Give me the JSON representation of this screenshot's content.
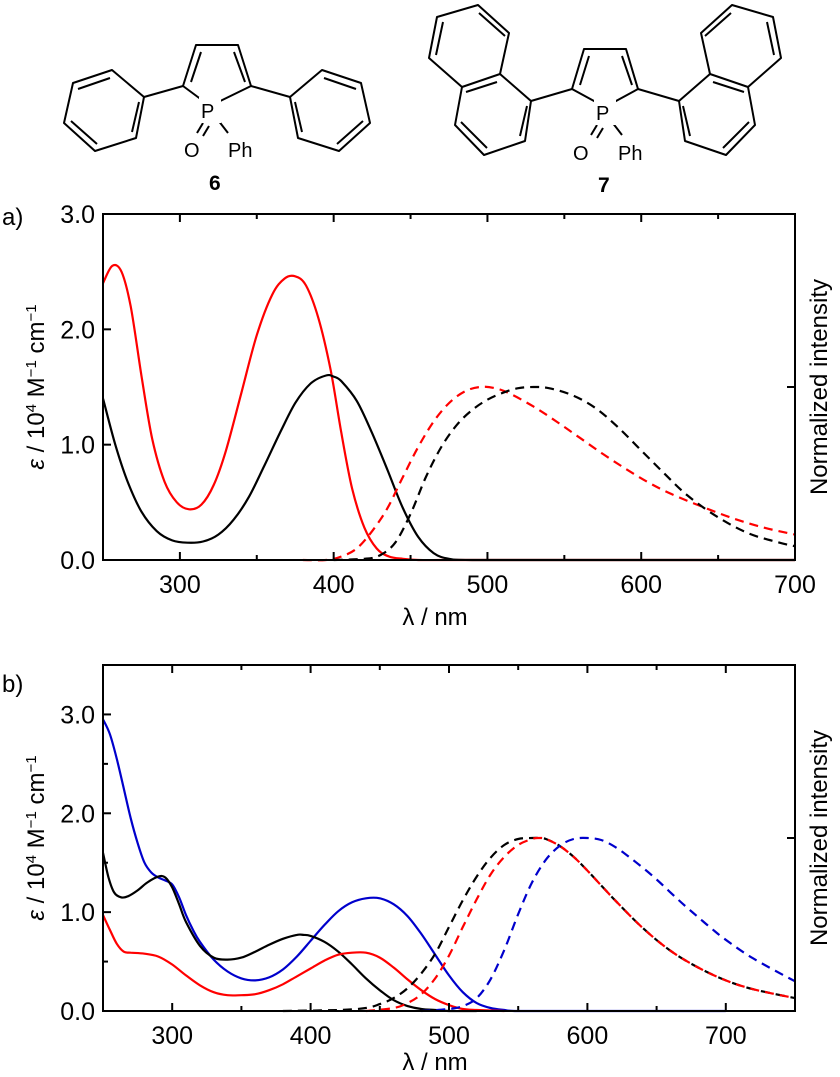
{
  "structures": [
    {
      "id": "6",
      "label": "6",
      "substituents": "2,5-diphenyl",
      "p_oxide_label": "O",
      "p_label": "P",
      "p_substituent": "Ph"
    },
    {
      "id": "7",
      "label": "7",
      "substituents": "2,5-di(1-naphthyl)",
      "p_oxide_label": "O",
      "p_label": "P",
      "p_substituent": "Ph"
    }
  ],
  "chart_data": [
    {
      "panel": "a)",
      "type": "line",
      "xlabel": "λ / nm",
      "ylabel": "ε / 10⁴ M⁻¹ cm⁻¹",
      "ylabel_parts": {
        "eps": "ε",
        "mid": " / 10",
        "sup1": "4",
        "mid2": " M",
        "sup2": "−1",
        "end": " cm",
        "sup3": "−1"
      },
      "y2label": "Normalized intensity",
      "xlim": [
        250,
        700
      ],
      "ylim": [
        0,
        3.0
      ],
      "xticks": [
        300,
        400,
        500,
        600,
        700
      ],
      "xticklabels": [
        "300",
        "400",
        "500",
        "600",
        "700"
      ],
      "xminor": [
        350,
        450,
        550,
        650
      ],
      "yticks": [
        0,
        1.0,
        2.0,
        3.0
      ],
      "yticklabels": [
        "0.0",
        "1.0",
        "2.0",
        "3.0"
      ],
      "y2_max_marker": 1.5,
      "series": [
        {
          "name": "6 absorption",
          "color": "#ff0000",
          "style": "solid",
          "x": [
            250,
            256,
            262,
            268,
            275,
            282,
            290,
            298,
            306,
            314,
            322,
            330,
            340,
            350,
            360,
            368,
            375,
            382,
            390,
            398,
            405,
            412,
            420,
            428,
            436,
            445,
            455,
            470,
            490,
            550,
            700
          ],
          "y": [
            2.4,
            2.55,
            2.5,
            2.2,
            1.6,
            1.05,
            0.68,
            0.5,
            0.44,
            0.48,
            0.65,
            0.95,
            1.45,
            1.95,
            2.3,
            2.44,
            2.46,
            2.38,
            2.1,
            1.65,
            1.1,
            0.62,
            0.28,
            0.1,
            0.03,
            0.01,
            0.0,
            0.0,
            0.0,
            0.0,
            0.0
          ]
        },
        {
          "name": "7 absorption",
          "color": "#000000",
          "style": "solid",
          "x": [
            250,
            258,
            266,
            275,
            285,
            295,
            305,
            315,
            325,
            335,
            345,
            355,
            365,
            375,
            385,
            395,
            400,
            405,
            415,
            425,
            435,
            445,
            455,
            465,
            475,
            490,
            550,
            700
          ],
          "y": [
            1.4,
            1.0,
            0.68,
            0.42,
            0.25,
            0.17,
            0.15,
            0.16,
            0.22,
            0.35,
            0.55,
            0.82,
            1.1,
            1.36,
            1.53,
            1.6,
            1.59,
            1.55,
            1.38,
            1.1,
            0.78,
            0.45,
            0.2,
            0.06,
            0.01,
            0.0,
            0.0,
            0.0
          ]
        },
        {
          "name": "6 emission",
          "color": "#ff0000",
          "style": "dashed",
          "x": [
            380,
            395,
            405,
            415,
            425,
            435,
            445,
            455,
            465,
            475,
            485,
            495,
            505,
            515,
            530,
            545,
            560,
            575,
            590,
            605,
            620,
            640,
            660,
            680,
            700
          ],
          "y": [
            0.0,
            0.0,
            0.03,
            0.1,
            0.25,
            0.45,
            0.72,
            0.98,
            1.2,
            1.36,
            1.46,
            1.5,
            1.49,
            1.44,
            1.33,
            1.2,
            1.06,
            0.92,
            0.79,
            0.67,
            0.57,
            0.46,
            0.36,
            0.28,
            0.22
          ]
        },
        {
          "name": "7 emission",
          "color": "#000000",
          "style": "dashed",
          "x": [
            400,
            420,
            430,
            440,
            450,
            460,
            470,
            480,
            490,
            500,
            510,
            520,
            530,
            540,
            555,
            570,
            585,
            600,
            615,
            630,
            650,
            670,
            690,
            700
          ],
          "y": [
            0.0,
            0.01,
            0.04,
            0.15,
            0.4,
            0.72,
            0.98,
            1.17,
            1.3,
            1.39,
            1.45,
            1.49,
            1.5,
            1.49,
            1.43,
            1.32,
            1.15,
            0.95,
            0.75,
            0.56,
            0.37,
            0.23,
            0.15,
            0.12
          ]
        }
      ]
    },
    {
      "panel": "b)",
      "type": "line",
      "xlabel": "λ / nm",
      "ylabel": "ε / 10⁴ M⁻¹ cm⁻¹",
      "ylabel_parts": {
        "eps": "ε",
        "mid": " / 10",
        "sup1": "4",
        "mid2": " M",
        "sup2": "−1",
        "end": " cm",
        "sup3": "−1"
      },
      "y2label": "Normalized intensity",
      "xlim": [
        250,
        750
      ],
      "ylim": [
        0,
        3.5
      ],
      "xticks": [
        300,
        400,
        500,
        600,
        700
      ],
      "xticklabels": [
        "300",
        "400",
        "500",
        "600",
        "700"
      ],
      "xminor": [
        350,
        450,
        550,
        650
      ],
      "yticks": [
        0,
        1.0,
        2.0,
        3.0
      ],
      "yticklabels": [
        "0.0",
        "1.0",
        "2.0",
        "3.0"
      ],
      "yminor": [
        0.5,
        1.5,
        2.5
      ],
      "y2_max_marker": 1.75,
      "series": [
        {
          "name": "blue absorption",
          "color": "#0000cc",
          "style": "solid",
          "x": [
            250,
            255,
            260,
            265,
            270,
            275,
            280,
            285,
            290,
            295,
            300,
            305,
            310,
            315,
            320,
            330,
            340,
            350,
            360,
            370,
            380,
            390,
            400,
            410,
            420,
            430,
            440,
            450,
            460,
            470,
            480,
            490,
            500,
            510,
            520,
            530,
            540,
            550,
            600,
            700
          ],
          "y": [
            2.95,
            2.8,
            2.55,
            2.25,
            1.95,
            1.7,
            1.5,
            1.4,
            1.35,
            1.32,
            1.28,
            1.15,
            0.97,
            0.82,
            0.7,
            0.52,
            0.4,
            0.33,
            0.31,
            0.34,
            0.42,
            0.55,
            0.71,
            0.87,
            1.01,
            1.1,
            1.14,
            1.14,
            1.08,
            0.96,
            0.78,
            0.57,
            0.36,
            0.19,
            0.08,
            0.03,
            0.01,
            0.0,
            0.0,
            0.0
          ]
        },
        {
          "name": "black absorption",
          "color": "#000000",
          "style": "solid",
          "x": [
            250,
            254,
            258,
            263,
            268,
            275,
            282,
            290,
            295,
            300,
            305,
            310,
            320,
            330,
            340,
            350,
            360,
            370,
            380,
            390,
            395,
            400,
            410,
            420,
            430,
            440,
            450,
            460,
            470,
            480,
            490,
            500,
            520
          ],
          "y": [
            1.6,
            1.35,
            1.2,
            1.15,
            1.16,
            1.22,
            1.3,
            1.36,
            1.35,
            1.25,
            1.08,
            0.9,
            0.66,
            0.54,
            0.52,
            0.54,
            0.6,
            0.67,
            0.73,
            0.77,
            0.77,
            0.76,
            0.7,
            0.6,
            0.47,
            0.33,
            0.21,
            0.11,
            0.05,
            0.02,
            0.01,
            0.0,
            0.0
          ]
        },
        {
          "name": "red absorption",
          "color": "#ff0000",
          "style": "solid",
          "x": [
            250,
            255,
            260,
            265,
            270,
            280,
            290,
            300,
            310,
            320,
            330,
            340,
            350,
            360,
            370,
            380,
            390,
            400,
            410,
            420,
            430,
            440,
            450,
            460,
            470,
            480,
            490,
            500,
            510,
            520,
            540
          ],
          "y": [
            0.97,
            0.82,
            0.68,
            0.6,
            0.59,
            0.58,
            0.55,
            0.47,
            0.36,
            0.26,
            0.19,
            0.16,
            0.16,
            0.17,
            0.21,
            0.27,
            0.35,
            0.43,
            0.51,
            0.57,
            0.59,
            0.59,
            0.54,
            0.44,
            0.32,
            0.21,
            0.12,
            0.06,
            0.02,
            0.01,
            0.0
          ]
        },
        {
          "name": "black emission",
          "color": "#000000",
          "style": "dashed",
          "x": [
            380,
            420,
            440,
            450,
            460,
            470,
            480,
            490,
            500,
            510,
            520,
            530,
            540,
            550,
            560,
            565,
            570,
            580,
            590,
            600,
            610,
            620,
            640,
            660,
            680,
            700,
            720,
            750
          ],
          "y": [
            0.0,
            0.01,
            0.03,
            0.07,
            0.13,
            0.23,
            0.38,
            0.58,
            0.85,
            1.12,
            1.36,
            1.55,
            1.68,
            1.74,
            1.75,
            1.75,
            1.74,
            1.67,
            1.56,
            1.42,
            1.27,
            1.12,
            0.84,
            0.61,
            0.44,
            0.31,
            0.22,
            0.13
          ]
        },
        {
          "name": "red emission",
          "color": "#ff0000",
          "style": "dashed",
          "x": [
            440,
            460,
            470,
            480,
            490,
            500,
            510,
            520,
            530,
            540,
            550,
            560,
            565,
            570,
            580,
            590,
            600,
            610,
            620,
            640,
            660,
            680,
            700,
            720,
            750
          ],
          "y": [
            0.0,
            0.03,
            0.08,
            0.17,
            0.33,
            0.56,
            0.85,
            1.13,
            1.38,
            1.56,
            1.68,
            1.74,
            1.75,
            1.74,
            1.67,
            1.56,
            1.42,
            1.27,
            1.12,
            0.84,
            0.61,
            0.44,
            0.31,
            0.22,
            0.13
          ]
        },
        {
          "name": "blue emission",
          "color": "#0000cc",
          "style": "dashed",
          "x": [
            480,
            500,
            510,
            520,
            530,
            540,
            550,
            560,
            570,
            580,
            590,
            600,
            610,
            620,
            630,
            640,
            650,
            660,
            670,
            680,
            690,
            700,
            720,
            750
          ],
          "y": [
            0.0,
            0.02,
            0.05,
            0.13,
            0.32,
            0.62,
            0.98,
            1.3,
            1.53,
            1.67,
            1.74,
            1.75,
            1.73,
            1.66,
            1.56,
            1.45,
            1.33,
            1.2,
            1.07,
            0.95,
            0.83,
            0.72,
            0.53,
            0.3
          ]
        }
      ]
    }
  ]
}
